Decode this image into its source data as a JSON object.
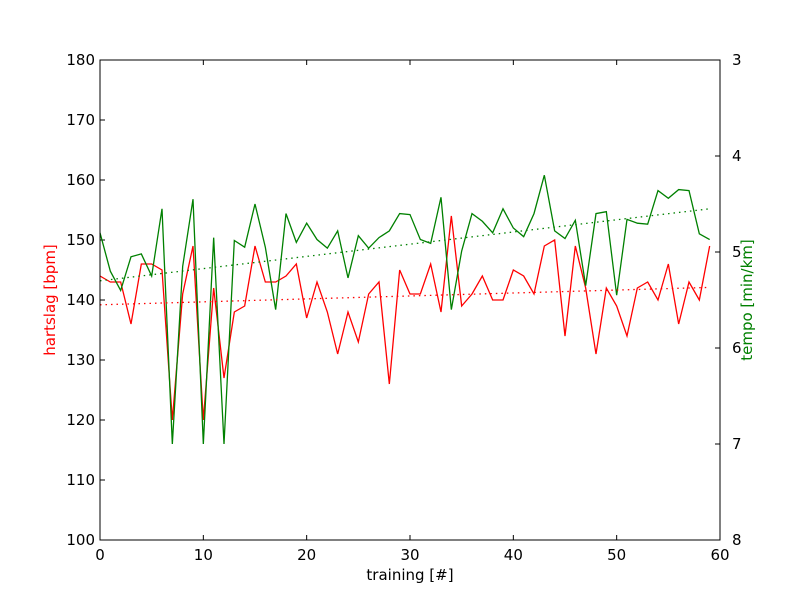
{
  "chart_data": {
    "type": "line",
    "xlabel": "training [#]",
    "ylabel_left": "hartslag [bpm]",
    "ylabel_right": "tempo [min/km]",
    "xlim": [
      0,
      60
    ],
    "ylim_left": [
      100,
      180
    ],
    "ylim_right_inverted": [
      3,
      8
    ],
    "x_ticks": [
      "0",
      "10",
      "20",
      "30",
      "40",
      "50",
      "60"
    ],
    "y_ticks_left": [
      "100",
      "110",
      "120",
      "130",
      "140",
      "150",
      "160",
      "170",
      "180"
    ],
    "y_ticks_right": [
      "3",
      "4",
      "5",
      "6",
      "7",
      "8"
    ],
    "grid": false,
    "x": [
      0,
      1,
      2,
      3,
      4,
      5,
      6,
      7,
      8,
      9,
      10,
      11,
      12,
      13,
      14,
      15,
      16,
      17,
      18,
      19,
      20,
      21,
      22,
      23,
      24,
      25,
      26,
      27,
      28,
      29,
      30,
      31,
      32,
      33,
      34,
      35,
      36,
      37,
      38,
      39,
      40,
      41,
      42,
      43,
      44,
      45,
      46,
      47,
      48,
      49,
      50,
      51,
      52,
      53,
      54,
      55,
      56,
      57,
      58,
      59
    ],
    "series": [
      {
        "axis": "left",
        "color": "#ff0000",
        "values": [
          144,
          143,
          143,
          136,
          146,
          146,
          145,
          120,
          141,
          149,
          120,
          142,
          127,
          138,
          139,
          149,
          143,
          143,
          144,
          146,
          137,
          143,
          138,
          131,
          138,
          133,
          141,
          143,
          126,
          145,
          141,
          141,
          146,
          138,
          154,
          139,
          141,
          144,
          140,
          140,
          145,
          144,
          141,
          149,
          150,
          134,
          149,
          142,
          131,
          142,
          139,
          134,
          142,
          143,
          140,
          146,
          136,
          143,
          140,
          149
        ]
      },
      {
        "axis": "right",
        "color": "#008000",
        "values": [
          4.8,
          5.2,
          5.4,
          5.05,
          5.02,
          5.25,
          4.55,
          7.0,
          5.15,
          4.45,
          7.0,
          4.85,
          7.0,
          4.88,
          4.95,
          4.5,
          4.95,
          5.6,
          4.6,
          4.9,
          4.7,
          4.87,
          4.96,
          4.78,
          5.27,
          4.83,
          4.96,
          4.85,
          4.78,
          4.6,
          4.61,
          4.87,
          4.91,
          4.43,
          5.6,
          4.99,
          4.6,
          4.68,
          4.8,
          4.55,
          4.75,
          4.84,
          4.6,
          4.2,
          4.78,
          4.86,
          4.67,
          5.35,
          4.6,
          4.58,
          5.45,
          4.66,
          4.7,
          4.71,
          4.36,
          4.44,
          4.35,
          4.36,
          4.81,
          4.87
        ]
      },
      {
        "axis": "left",
        "color": "#ff0000",
        "style": "dotted",
        "x": [
          0,
          59
        ],
        "values": [
          139.2,
          142.1
        ]
      },
      {
        "axis": "right",
        "color": "#008000",
        "style": "dotted",
        "x": [
          0,
          59
        ],
        "values": [
          5.3,
          4.55
        ]
      }
    ]
  }
}
